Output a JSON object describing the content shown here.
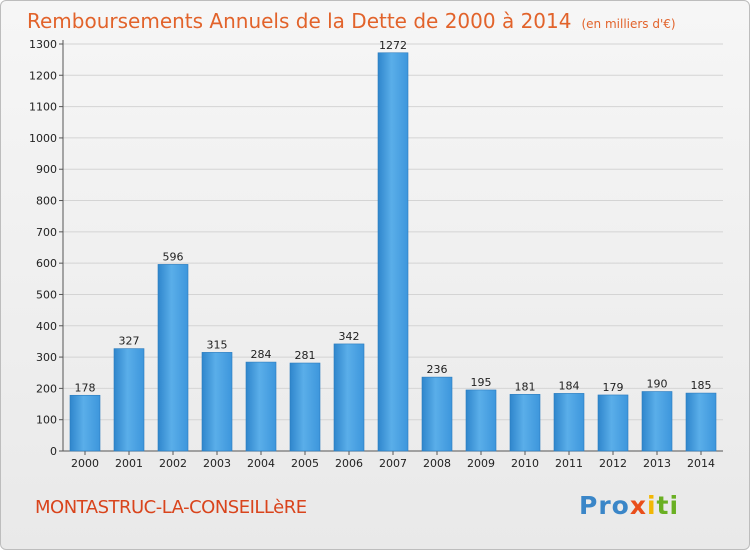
{
  "title": "Remboursements Annuels de la Dette de 2000 à 2014",
  "unit_note": "(en milliers d'€)",
  "commune": "MONTASTRUC-LA-CONSEILLèRE",
  "logo_text": [
    "Pro",
    "x",
    "i",
    "ti"
  ],
  "colors": {
    "bar": "#3d96dc",
    "bar_light": "#62b3ee",
    "title": "#e2632b",
    "grid": "#d4d4d4"
  },
  "chart_data": {
    "type": "bar",
    "categories": [
      "2000",
      "2001",
      "2002",
      "2003",
      "2004",
      "2005",
      "2006",
      "2007",
      "2008",
      "2009",
      "2010",
      "2011",
      "2012",
      "2013",
      "2014"
    ],
    "values": [
      178,
      327,
      596,
      315,
      284,
      281,
      342,
      1272,
      236,
      195,
      181,
      184,
      179,
      190,
      185
    ],
    "ylim": [
      0,
      1300
    ],
    "yticks": [
      0,
      100,
      200,
      300,
      400,
      500,
      600,
      700,
      800,
      900,
      1000,
      1100,
      1200,
      1300
    ],
    "grid": true
  }
}
